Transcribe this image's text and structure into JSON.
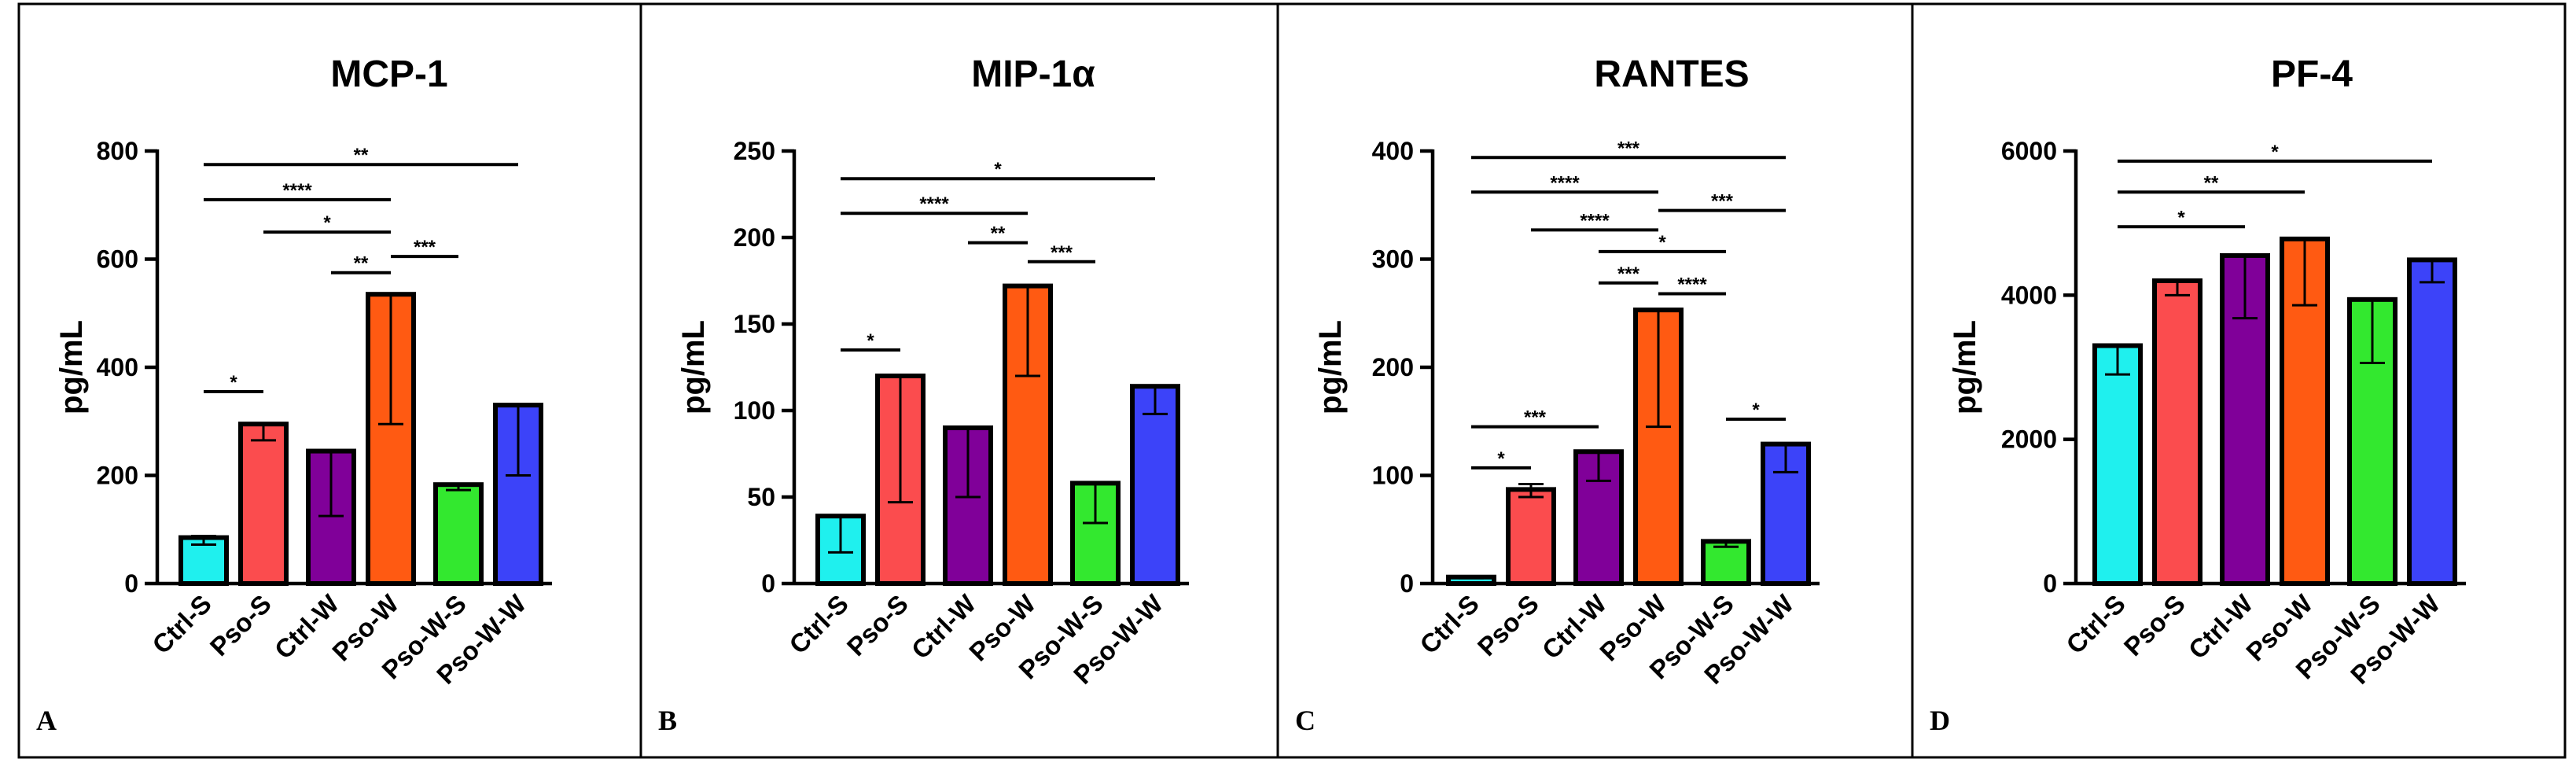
{
  "chart_data": [
    {
      "type": "bar",
      "panel": "A",
      "title": "MCP-1",
      "ylabel": "pg/mL",
      "xlabel": "",
      "ylim": [
        0,
        800
      ],
      "yticks": [
        0,
        200,
        400,
        600,
        800
      ],
      "tick_labels": [
        "0",
        "200",
        "400",
        "600",
        "800"
      ],
      "categories": [
        "Ctrl-S",
        "Pso-S",
        "Ctrl-W",
        "Pso-W",
        "Pso-W-S",
        "Pso-W-W"
      ],
      "values": [
        85,
        295,
        245,
        535,
        183,
        330
      ],
      "err_low": [
        72,
        265,
        125,
        295,
        173,
        200
      ],
      "err_high": [
        88,
        295,
        245,
        535,
        183,
        330
      ],
      "colors": [
        "#1ff0ee",
        "#fb4c4e",
        "#800099",
        "#ff5a12",
        "#33e82f",
        "#3c43f9"
      ],
      "significance": [
        {
          "from": 0,
          "to": 1,
          "y": 355,
          "label": "*"
        },
        {
          "from": 0,
          "to": 3,
          "y": 710,
          "label": "****"
        },
        {
          "from": 1,
          "to": 3,
          "y": 650,
          "label": "*"
        },
        {
          "from": 2,
          "to": 3,
          "y": 575,
          "label": "**"
        },
        {
          "from": 3,
          "to": 4,
          "y": 605,
          "label": "***"
        },
        {
          "from": 0,
          "to": 5,
          "y": 775,
          "label": "**"
        }
      ]
    },
    {
      "type": "bar",
      "panel": "B",
      "title": "MIP-1α",
      "ylabel": "pg/mL",
      "xlabel": "",
      "ylim": [
        0,
        250
      ],
      "yticks": [
        0,
        50,
        100,
        150,
        200,
        250
      ],
      "tick_labels": [
        "0",
        "50",
        "100",
        "150",
        "200",
        "250"
      ],
      "categories": [
        "Ctrl-S",
        "Pso-S",
        "Ctrl-W",
        "Pso-W",
        "Pso-W-S",
        "Pso-W-W"
      ],
      "values": [
        39,
        120,
        90,
        172,
        58,
        114
      ],
      "err_low": [
        18,
        47,
        50,
        120,
        35,
        98
      ],
      "err_high": [
        39,
        120,
        90,
        172,
        58,
        114
      ],
      "colors": [
        "#1ff0ee",
        "#fb4c4e",
        "#800099",
        "#ff5a12",
        "#33e82f",
        "#3c43f9"
      ],
      "significance": [
        {
          "from": 0,
          "to": 1,
          "y": 135,
          "label": "*"
        },
        {
          "from": 0,
          "to": 3,
          "y": 214,
          "label": "****"
        },
        {
          "from": 2,
          "to": 3,
          "y": 197,
          "label": "**"
        },
        {
          "from": 3,
          "to": 4,
          "y": 186,
          "label": "***"
        },
        {
          "from": 0,
          "to": 5,
          "y": 234,
          "label": "*"
        }
      ]
    },
    {
      "type": "bar",
      "panel": "C",
      "title": "RANTES",
      "ylabel": "pg/mL",
      "xlabel": "",
      "ylim": [
        0,
        400
      ],
      "yticks": [
        0,
        100,
        200,
        300,
        400
      ],
      "tick_labels": [
        "0",
        "100",
        "200",
        "300",
        "400"
      ],
      "categories": [
        "Ctrl-S",
        "Pso-S",
        "Ctrl-W",
        "Pso-W",
        "Pso-W-S",
        "Pso-W-W"
      ],
      "values": [
        6,
        87,
        122,
        253,
        39,
        129
      ],
      "err_low": [
        5,
        80,
        95,
        145,
        34,
        103
      ],
      "err_high": [
        6,
        92,
        122,
        253,
        39,
        129
      ],
      "colors": [
        "#1ff0ee",
        "#fb4c4e",
        "#800099",
        "#ff5a12",
        "#33e82f",
        "#3c43f9"
      ],
      "significance": [
        {
          "from": 0,
          "to": 1,
          "y": 107,
          "label": "*"
        },
        {
          "from": 0,
          "to": 2,
          "y": 145,
          "label": "***"
        },
        {
          "from": 0,
          "to": 3,
          "y": 362,
          "label": "****"
        },
        {
          "from": 1,
          "to": 3,
          "y": 327,
          "label": "****"
        },
        {
          "from": 2,
          "to": 3,
          "y": 278,
          "label": "***"
        },
        {
          "from": 2,
          "to": 4,
          "y": 307,
          "label": "*"
        },
        {
          "from": 3,
          "to": 4,
          "y": 268,
          "label": "****"
        },
        {
          "from": 3,
          "to": 5,
          "y": 345,
          "label": "***"
        },
        {
          "from": 4,
          "to": 5,
          "y": 152,
          "label": "*"
        },
        {
          "from": 0,
          "to": 5,
          "y": 394,
          "label": "***"
        }
      ]
    },
    {
      "type": "bar",
      "panel": "D",
      "title": "PF-4",
      "ylabel": "pg/mL",
      "xlabel": "",
      "ylim": [
        0,
        6000
      ],
      "yticks": [
        0,
        2000,
        4000,
        6000
      ],
      "tick_labels": [
        "0",
        "2000",
        "4000",
        "6000"
      ],
      "categories": [
        "Ctrl-S",
        "Pso-S",
        "Ctrl-W",
        "Pso-W",
        "Pso-W-S",
        "Pso-W-W"
      ],
      "values": [
        3300,
        4200,
        4550,
        4780,
        3940,
        4490
      ],
      "err_low": [
        2900,
        4000,
        3680,
        3860,
        3060,
        4180
      ],
      "err_high": [
        3300,
        4200,
        4550,
        4780,
        3940,
        4490
      ],
      "colors": [
        "#1ff0ee",
        "#fb4c4e",
        "#800099",
        "#ff5a12",
        "#33e82f",
        "#3c43f9"
      ],
      "significance": [
        {
          "from": 0,
          "to": 2,
          "y": 4950,
          "label": "*"
        },
        {
          "from": 0,
          "to": 3,
          "y": 5430,
          "label": "**"
        },
        {
          "from": 0,
          "to": 5,
          "y": 5860,
          "label": "*"
        }
      ]
    }
  ]
}
